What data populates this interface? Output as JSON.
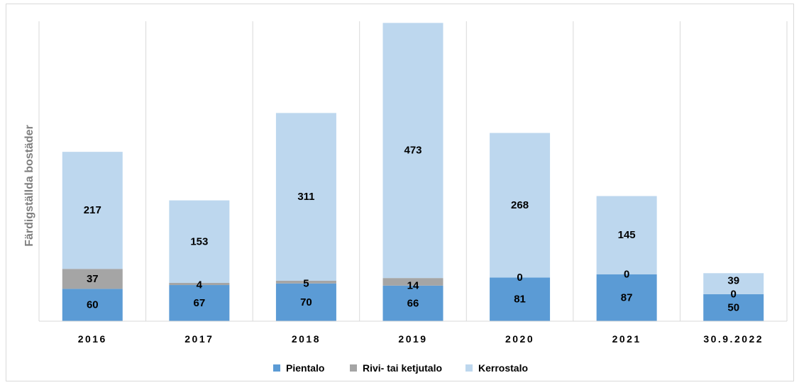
{
  "chart_data": {
    "type": "bar",
    "stacked": true,
    "categories": [
      "2016",
      "2017",
      "2018",
      "2019",
      "2020",
      "2021",
      "30.9.2022"
    ],
    "series": [
      {
        "name": "Pientalo",
        "color": "#5b9bd5",
        "values": [
          60,
          67,
          70,
          66,
          81,
          87,
          50
        ]
      },
      {
        "name": "Rivi- tai ketjutalo",
        "color": "#a5a5a5",
        "values": [
          37,
          4,
          5,
          14,
          0,
          0,
          0
        ]
      },
      {
        "name": "Kerrostalo",
        "color": "#bdd7ee",
        "values": [
          217,
          153,
          311,
          473,
          268,
          145,
          39
        ]
      }
    ],
    "ylabel": "Färdigställda bostäder",
    "xlabel": "",
    "ylim": [
      0,
      560
    ],
    "grid": "vertical-category-separators",
    "legend": "bottom",
    "data_labels": true
  }
}
